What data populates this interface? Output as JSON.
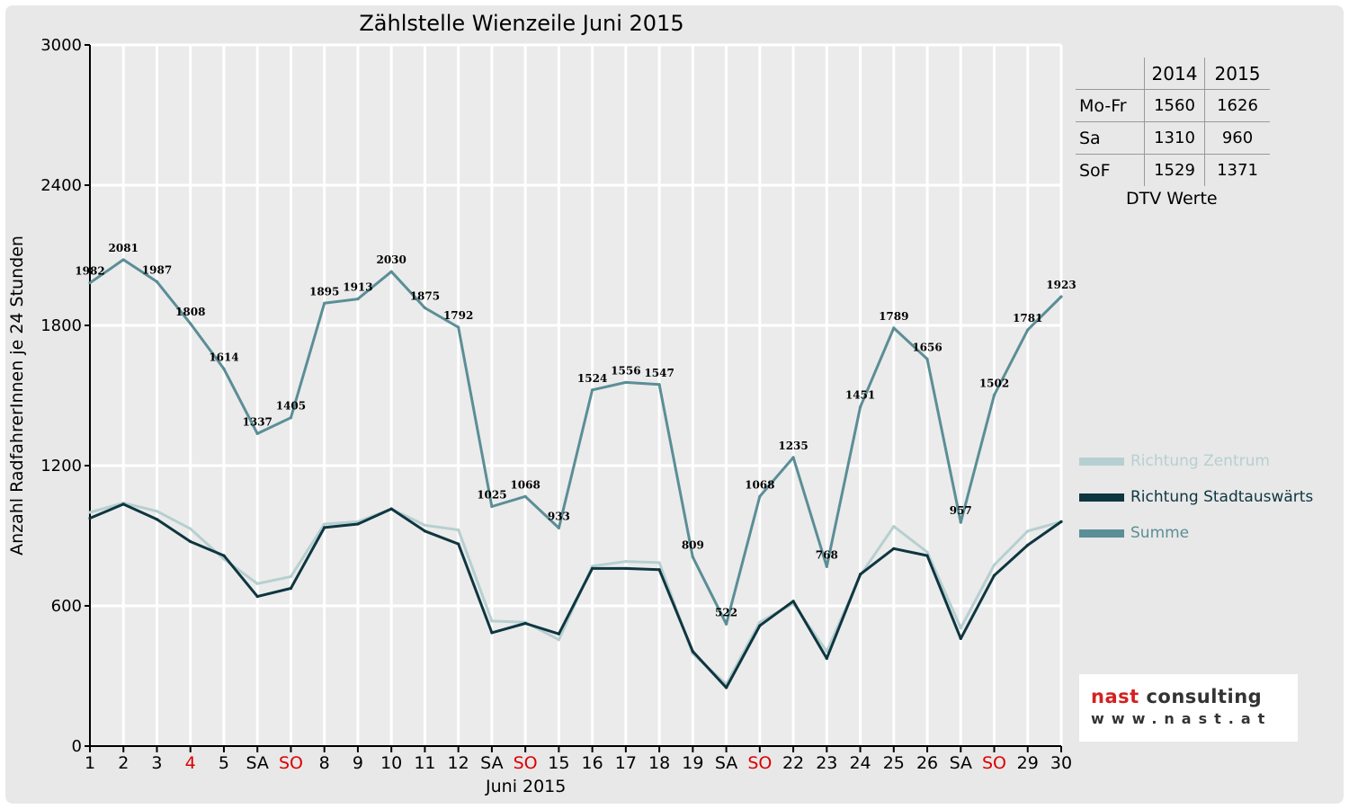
{
  "chart_data": {
    "type": "line",
    "title": "Zählstelle Wienzeile Juni 2015",
    "xlabel": "Juni 2015",
    "ylabel": "Anzahl RadfahrerInnen je 24 Stunden",
    "ylim": [
      0,
      3000
    ],
    "yticks": [
      0,
      600,
      1200,
      1800,
      2400,
      3000
    ],
    "grid": true,
    "legend_position": "right",
    "categories": [
      "1",
      "2",
      "3",
      "4",
      "5",
      "SA",
      "SO",
      "8",
      "9",
      "10",
      "11",
      "12",
      "SA",
      "SO",
      "15",
      "16",
      "17",
      "18",
      "19",
      "SA",
      "SO",
      "22",
      "23",
      "24",
      "25",
      "26",
      "SA",
      "SO",
      "29",
      "30"
    ],
    "highlighted_categories": [
      3,
      6,
      13,
      20,
      27
    ],
    "series": [
      {
        "name": "Richtung Zentrum",
        "color": "#b7cfd0",
        "values": [
          1000,
          1040,
          1005,
          930,
          800,
          695,
          725,
          950,
          960,
          1015,
          945,
          925,
          535,
          530,
          455,
          770,
          790,
          785,
          395,
          265,
          530,
          610,
          405,
          730,
          940,
          830,
          505,
          775,
          920,
          960
        ]
      },
      {
        "name": "Richtung Stadtauswärts",
        "color": "#0e3640",
        "values": [
          975,
          1035,
          970,
          875,
          815,
          640,
          675,
          935,
          950,
          1015,
          920,
          865,
          485,
          525,
          480,
          760,
          760,
          755,
          405,
          250,
          515,
          620,
          375,
          735,
          845,
          815,
          460,
          730,
          860,
          960
        ]
      },
      {
        "name": "Summe",
        "color": "#5b8e96",
        "values": [
          1982,
          2081,
          1987,
          1808,
          1614,
          1337,
          1405,
          1895,
          1913,
          2030,
          1875,
          1792,
          1025,
          1068,
          933,
          1524,
          1556,
          1547,
          809,
          522,
          1068,
          1235,
          768,
          1451,
          1789,
          1656,
          957,
          1502,
          1781,
          1923
        ]
      }
    ]
  },
  "dtv_table": {
    "caption": "DTV Werte",
    "col_2014": "2014",
    "col_2015": "2015",
    "rows": [
      {
        "label": "Mo-Fr",
        "v2014": "1560",
        "v2015": "1626"
      },
      {
        "label": "Sa",
        "v2014": "1310",
        "v2015": "960"
      },
      {
        "label": "SoF",
        "v2014": "1529",
        "v2015": "1371"
      }
    ]
  },
  "logo": {
    "name_part1": "nast",
    "name_part2": " consulting",
    "url": "www.nast.at",
    "color_part1": "#d42020",
    "color_part2": "#333333"
  },
  "colors": {
    "highlight_day": "#dd0000",
    "axis": "#000000",
    "grid": "#ffffff"
  }
}
